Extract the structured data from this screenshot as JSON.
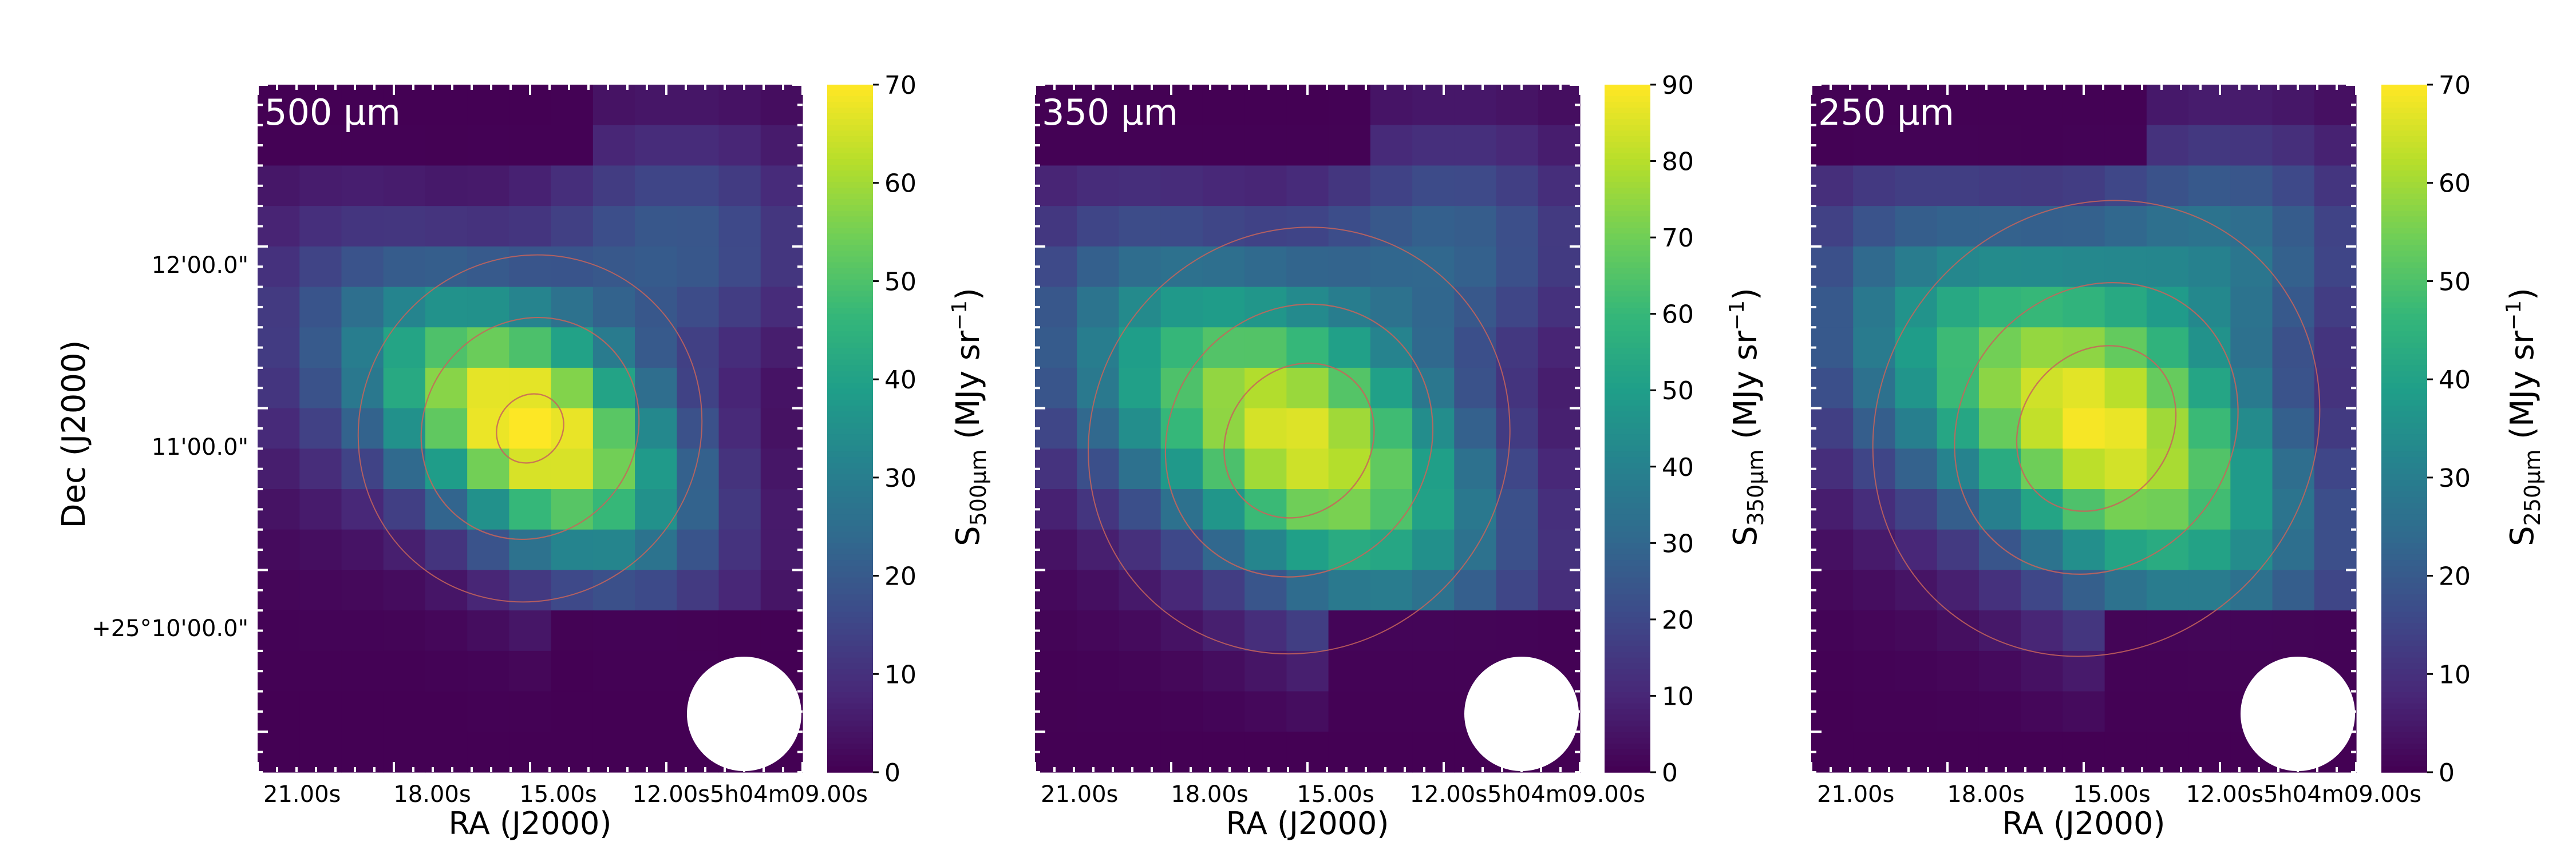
{
  "chart_data": [
    {
      "type": "heatmap",
      "panel_label": "500 µm",
      "ylabel": "Dec (J2000)",
      "xlabel": "RA (J2000)",
      "x_ticks": [
        "21.00s",
        "18.00s",
        "15.00s",
        "12.00s",
        "5h04m09.00s"
      ],
      "y_ticks": [
        "12'00.0\"",
        "11'00.0\"",
        "+25°10'00.0\""
      ],
      "colorbar": {
        "label_main": "S",
        "label_sub": "500µm",
        "label_units": "(MJy sr",
        "label_exp": "−1",
        "label_close": ")",
        "range": [
          0,
          70
        ],
        "ticks": [
          0,
          10,
          20,
          30,
          40,
          50,
          60,
          70
        ],
        "colormap": "viridis"
      },
      "contour_color": "#c8645a",
      "beam_color": "#ffffff"
    },
    {
      "type": "heatmap",
      "panel_label": "350 µm",
      "xlabel": "RA (J2000)",
      "x_ticks": [
        "21.00s",
        "18.00s",
        "15.00s",
        "12.00s",
        "5h04m09.00s"
      ],
      "colorbar": {
        "label_main": "S",
        "label_sub": "350µm",
        "label_units": "(MJy sr",
        "label_exp": "−1",
        "label_close": ")",
        "range": [
          0,
          90
        ],
        "ticks": [
          0,
          10,
          20,
          30,
          40,
          50,
          60,
          70,
          80,
          90
        ],
        "colormap": "viridis"
      },
      "contour_color": "#c8645a",
      "beam_color": "#ffffff"
    },
    {
      "type": "heatmap",
      "panel_label": "250 µm",
      "xlabel": "RA (J2000)",
      "x_ticks": [
        "21.00s",
        "18.00s",
        "15.00s",
        "12.00s",
        "5h04m09.00s"
      ],
      "colorbar": {
        "label_main": "S",
        "label_sub": "250µm",
        "label_units": "(MJy sr",
        "label_exp": "−1",
        "label_close": ")",
        "range": [
          0,
          70
        ],
        "ticks": [
          0,
          10,
          20,
          30,
          40,
          50,
          60,
          70
        ],
        "colormap": "viridis"
      },
      "contour_color": "#c8645a",
      "beam_color": "#ffffff"
    }
  ]
}
